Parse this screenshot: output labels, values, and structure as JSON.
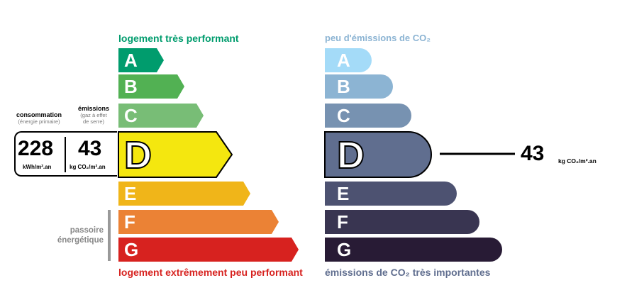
{
  "dpe": {
    "top_label": "logement très performant",
    "bottom_label": "logement extrêmement peu performant",
    "classes": [
      {
        "letter": "A",
        "color": "#009c6d"
      },
      {
        "letter": "B",
        "color": "#52b153"
      },
      {
        "letter": "C",
        "color": "#78bd76"
      },
      {
        "letter": "D",
        "color": "#f4e70f"
      },
      {
        "letter": "E",
        "color": "#f0b519"
      },
      {
        "letter": "F",
        "color": "#eb8235"
      },
      {
        "letter": "G",
        "color": "#d7221f"
      }
    ],
    "active_class": "D",
    "consumption": {
      "title": "consommation",
      "subtitle": "(énergie primaire)",
      "value": "228",
      "unit": "kWh/m².an"
    },
    "emissions": {
      "title": "émissions",
      "subtitle_line1": "(gaz à effet",
      "subtitle_line2": "de serre)",
      "value": "43",
      "unit": "kg CO₂/m².an"
    },
    "passoire_line1": "passoire",
    "passoire_line2": "énergétique"
  },
  "ges": {
    "top_label": "peu d'émissions de CO₂",
    "bottom_label": "émissions de CO₂ très importantes",
    "classes": [
      {
        "letter": "A",
        "color": "#a4dbf8"
      },
      {
        "letter": "B",
        "color": "#8cb4d3"
      },
      {
        "letter": "C",
        "color": "#7792b1"
      },
      {
        "letter": "D",
        "color": "#606e8f"
      },
      {
        "letter": "E",
        "color": "#4d5271"
      },
      {
        "letter": "F",
        "color": "#393551"
      },
      {
        "letter": "G",
        "color": "#281b35"
      }
    ],
    "active_class": "D",
    "value": "43",
    "unit": "kg CO₂/m².an"
  },
  "colors": {
    "dpe_top_label": "#009c6d",
    "dpe_bottom_label": "#d7221f",
    "ges_top_label": "#8cb4d3",
    "ges_bottom_label": "#606e8f"
  }
}
